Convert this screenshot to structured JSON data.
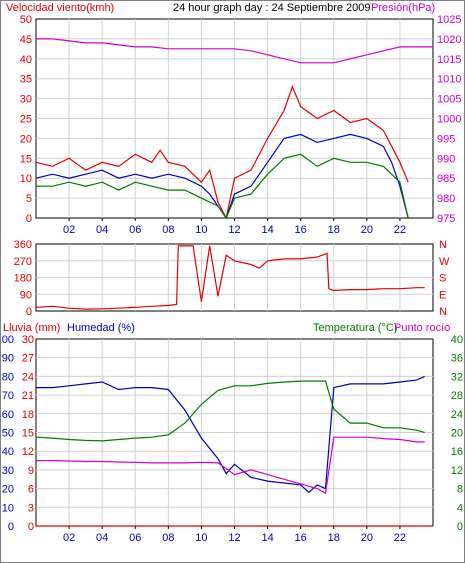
{
  "colors": {
    "red": "#e60000",
    "blue": "#0000b8",
    "green": "#007a00",
    "magenta": "#d000d0",
    "grid": "#d0d0d0",
    "axis": "#000000"
  },
  "chart_data": [
    {
      "id": "wind_pressure",
      "type": "line",
      "title": "24 hour graph day : 24 Septiembre 2009",
      "ylabel_left": "Velocidad viento(kmh)",
      "ylabel_right": "Presión(hPa)",
      "x_ticks": [
        "02",
        "04",
        "06",
        "08",
        "10",
        "12",
        "14",
        "16",
        "18",
        "20",
        "22"
      ],
      "xlim": [
        0,
        24
      ],
      "ylim_left": [
        0,
        50
      ],
      "ylim_right": [
        975,
        1025
      ],
      "y_ticks_left": [
        "0",
        "5",
        "10",
        "15",
        "20",
        "25",
        "30",
        "35",
        "40",
        "45",
        "50"
      ],
      "y_ticks_right": [
        "975",
        "980",
        "985",
        "990",
        "995",
        "1000",
        "1005",
        "1010",
        "1015",
        "1020",
        "1025"
      ],
      "grid": true,
      "series": [
        {
          "color_key": "red",
          "axis": "left",
          "x": [
            0,
            1,
            2,
            3,
            4,
            5,
            6,
            7,
            7.5,
            8,
            9,
            10,
            10.5,
            11,
            11.5,
            12,
            13,
            14,
            15,
            15.5,
            16,
            17,
            18,
            19,
            20,
            21,
            22,
            22.5
          ],
          "y": [
            14,
            13,
            15,
            12,
            14,
            13,
            16,
            14,
            17,
            14,
            13,
            9,
            12,
            4,
            0,
            10,
            12,
            20,
            27,
            33,
            28,
            25,
            27,
            24,
            25,
            22,
            14,
            9
          ]
        },
        {
          "color_key": "blue",
          "axis": "left",
          "x": [
            0,
            1,
            2,
            3,
            4,
            5,
            6,
            7,
            8,
            9,
            10,
            10.5,
            11,
            11.5,
            12,
            13,
            14,
            15,
            16,
            17,
            18,
            19,
            20,
            21,
            21.5,
            22,
            22.5
          ],
          "y": [
            10,
            11,
            10,
            11,
            12,
            10,
            11,
            10,
            11,
            10,
            8,
            6,
            3,
            0,
            6,
            8,
            14,
            20,
            21,
            19,
            20,
            21,
            20,
            18,
            14,
            8,
            0
          ]
        },
        {
          "color_key": "green",
          "axis": "left",
          "x": [
            0,
            1,
            2,
            3,
            4,
            5,
            6,
            7,
            8,
            9,
            10,
            11,
            11.5,
            12,
            13,
            14,
            15,
            16,
            17,
            18,
            19,
            20,
            21,
            22,
            22.5
          ],
          "y": [
            8,
            8,
            9,
            8,
            9,
            7,
            9,
            8,
            7,
            7,
            5,
            3,
            0,
            5,
            6,
            11,
            15,
            16,
            13,
            15,
            14,
            14,
            13,
            9,
            0
          ]
        },
        {
          "color_key": "magenta",
          "axis": "right",
          "x": [
            0,
            1,
            2,
            3,
            4,
            5,
            6,
            7,
            8,
            9,
            10,
            11,
            12,
            13,
            14,
            15,
            16,
            17,
            18,
            19,
            20,
            21,
            22,
            23,
            24
          ],
          "y": [
            1020,
            1020,
            1019.5,
            1019,
            1019,
            1018.5,
            1018,
            1018,
            1017.5,
            1017.5,
            1017.5,
            1017.5,
            1017.5,
            1017,
            1016,
            1015,
            1014,
            1014,
            1014,
            1015,
            1016,
            1017,
            1018,
            1018,
            1018
          ]
        }
      ]
    },
    {
      "id": "wind_direction",
      "type": "line",
      "ylabel_left": "",
      "y_ticks_left": [
        "0",
        "90",
        "180",
        "270",
        "360"
      ],
      "y_ticks_right": [
        "N",
        "E",
        "S",
        "W",
        "N"
      ],
      "ylim_left": [
        0,
        360
      ],
      "xlim": [
        0,
        24
      ],
      "grid": true,
      "series": [
        {
          "color_key": "red",
          "axis": "left",
          "x": [
            0,
            1,
            2,
            3,
            4,
            5,
            6,
            7,
            8,
            8.5,
            8.6,
            9,
            9.5,
            10,
            10.5,
            11,
            11.5,
            12,
            13,
            13.5,
            14,
            15,
            16,
            17,
            17.6,
            17.7,
            18,
            19,
            20,
            21,
            22,
            23,
            23.5
          ],
          "y": [
            20,
            25,
            15,
            10,
            12,
            15,
            20,
            25,
            30,
            35,
            350,
            350,
            350,
            50,
            350,
            80,
            300,
            270,
            250,
            230,
            270,
            280,
            280,
            290,
            310,
            120,
            110,
            115,
            115,
            120,
            120,
            125,
            125
          ]
        }
      ]
    },
    {
      "id": "temp_hum_rain",
      "type": "line",
      "ylabel_left_1": "Lluvia (mm)",
      "ylabel_left_2": "Humedad (%)",
      "ylabel_right_1": "Temperatura (°C)",
      "ylabel_right_2": "Punto rocío",
      "xlim": [
        0,
        24
      ],
      "ylim_rain": [
        0,
        30
      ],
      "ylim_humidity": [
        0,
        100
      ],
      "ylim_temp": [
        0,
        40
      ],
      "y_ticks_rain": [
        "0",
        "3",
        "6",
        "9",
        "12",
        "15",
        "18",
        "21",
        "24",
        "27",
        "30"
      ],
      "y_ticks_humidity": [
        "0",
        "10",
        "20",
        "30",
        "40",
        "50",
        "60",
        "70",
        "80",
        "90",
        "100"
      ],
      "y_ticks_temp": [
        "0",
        "4",
        "8",
        "12",
        "16",
        "20",
        "24",
        "28",
        "32",
        "36",
        "40"
      ],
      "grid": true,
      "series": [
        {
          "name": "Humedad (%)",
          "color_key": "blue",
          "axis": "humidity",
          "x": [
            0,
            1,
            2,
            3,
            4,
            5,
            6,
            7,
            8,
            9,
            10,
            11,
            11.5,
            12,
            13,
            14,
            15,
            16,
            16.5,
            17,
            17.5,
            18,
            19,
            20,
            21,
            22,
            23,
            23.5
          ],
          "y": [
            74,
            74,
            75,
            76,
            77,
            73,
            74,
            74,
            73,
            62,
            47,
            36,
            28,
            33,
            26,
            24,
            23,
            22,
            18,
            22,
            20,
            74,
            76,
            76,
            76,
            77,
            78,
            80
          ]
        },
        {
          "name": "Temperatura (°C)",
          "color_key": "green",
          "axis": "temp",
          "x": [
            0,
            1,
            2,
            3,
            4,
            5,
            6,
            7,
            8,
            9,
            10,
            11,
            12,
            13,
            14,
            15,
            16,
            17,
            17.5,
            18,
            19,
            20,
            21,
            22,
            23,
            23.5
          ],
          "y": [
            19,
            18.8,
            18.5,
            18.3,
            18.2,
            18.5,
            18.8,
            19,
            19.5,
            22,
            26,
            29,
            30,
            30,
            30.5,
            30.8,
            31,
            31,
            31,
            25,
            22,
            22,
            21,
            21,
            20.5,
            20
          ]
        },
        {
          "name": "Punto rocío",
          "color_key": "magenta",
          "axis": "temp",
          "x": [
            0,
            1,
            2,
            3,
            4,
            5,
            6,
            7,
            8,
            9,
            10,
            11,
            12,
            13,
            14,
            15,
            16,
            17,
            17.5,
            18,
            19,
            20,
            21,
            22,
            23,
            23.5
          ],
          "y": [
            14,
            14,
            13.9,
            13.8,
            13.8,
            13.7,
            13.6,
            13.5,
            13.5,
            13.5,
            13.6,
            13.5,
            11,
            12,
            11,
            10,
            9,
            8,
            7,
            19,
            19,
            19,
            18.7,
            18.5,
            18,
            18
          ]
        },
        {
          "name": "Lluvia (mm)",
          "color_key": "red",
          "axis": "rain",
          "x": [
            0,
            24
          ],
          "y": [
            0,
            0
          ]
        }
      ]
    }
  ]
}
